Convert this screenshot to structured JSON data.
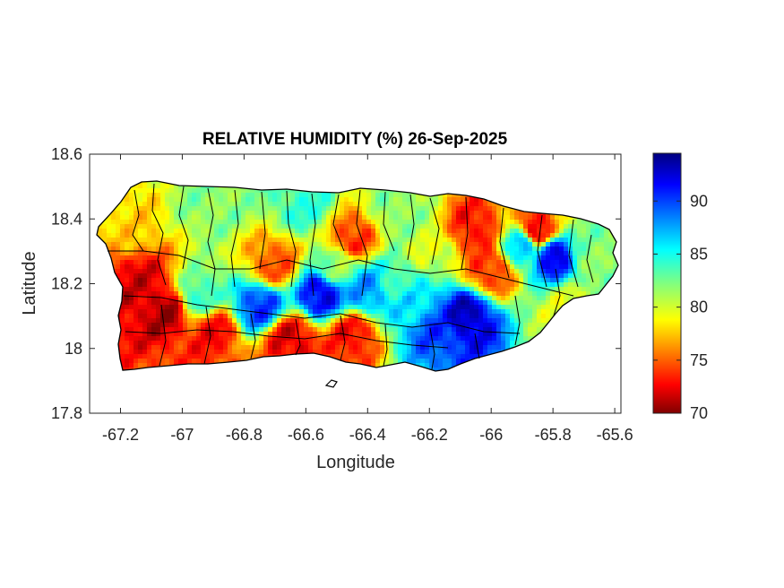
{
  "chart_data": {
    "type": "heatmap",
    "title": "RELATIVE HUMIDITY (%) 26-Sep-2025",
    "xlabel": "Longitude",
    "ylabel": "Latitude",
    "xlim": [
      -67.3,
      -65.58
    ],
    "ylim": [
      17.8,
      18.6
    ],
    "x_ticks": [
      -67.2,
      -67,
      -66.8,
      -66.6,
      -66.4,
      -66.2,
      -66,
      -65.8,
      -65.6
    ],
    "x_tick_labels": [
      "-67.2",
      "-67",
      "-66.8",
      "-66.6",
      "-66.4",
      "-66.2",
      "-66",
      "-65.8",
      "-65.6"
    ],
    "y_ticks": [
      17.8,
      18,
      18.2,
      18.4,
      18.6
    ],
    "y_tick_labels": [
      "17.8",
      "18",
      "18.2",
      "18.4",
      "18.6"
    ],
    "colorbar": {
      "colormap": "jet",
      "limits": [
        70,
        94.5
      ],
      "ticks": [
        70,
        75,
        80,
        85,
        90
      ],
      "tick_labels": [
        "70",
        "75",
        "80",
        "85",
        "90"
      ]
    },
    "field_features": [
      {
        "lon": -66.55,
        "lat": 18.17,
        "value": 92
      },
      {
        "lon": -66.75,
        "lat": 18.13,
        "value": 90
      },
      {
        "lon": -66.4,
        "lat": 18.18,
        "value": 88
      },
      {
        "lon": -66.08,
        "lat": 18.1,
        "value": 93
      },
      {
        "lon": -66.18,
        "lat": 18.07,
        "value": 90
      },
      {
        "lon": -65.8,
        "lat": 18.29,
        "value": 92
      },
      {
        "lon": -65.9,
        "lat": 18.32,
        "value": 86
      },
      {
        "lon": -66.25,
        "lat": 18.13,
        "value": 86
      },
      {
        "lon": -66.3,
        "lat": 18.2,
        "value": 84
      },
      {
        "lon": -66.95,
        "lat": 18.16,
        "value": 84
      },
      {
        "lon": -67.15,
        "lat": 18.2,
        "value": 72
      },
      {
        "lon": -67.05,
        "lat": 18.12,
        "value": 71
      },
      {
        "lon": -66.9,
        "lat": 18.05,
        "value": 73
      },
      {
        "lon": -66.65,
        "lat": 18.03,
        "value": 72
      },
      {
        "lon": -66.45,
        "lat": 18.04,
        "value": 73
      },
      {
        "lon": -66.05,
        "lat": 18.37,
        "value": 73
      },
      {
        "lon": -65.85,
        "lat": 18.36,
        "value": 72
      },
      {
        "lon": -66.45,
        "lat": 18.34,
        "value": 74
      },
      {
        "lon": -66.0,
        "lat": 18.24,
        "value": 74
      },
      {
        "lon": -66.7,
        "lat": 18.26,
        "value": 75
      },
      {
        "lon": -67.2,
        "lat": 18.38,
        "value": 78
      },
      {
        "lon": -66.9,
        "lat": 18.45,
        "value": 82
      },
      {
        "lon": -66.6,
        "lat": 18.44,
        "value": 84
      },
      {
        "lon": -66.3,
        "lat": 18.42,
        "value": 82
      },
      {
        "lon": -65.68,
        "lat": 18.3,
        "value": 82
      },
      {
        "lon": -66.2,
        "lat": 18.3,
        "value": 80
      },
      {
        "lon": -66.5,
        "lat": 18.25,
        "value": 82
      },
      {
        "lon": -65.75,
        "lat": 18.12,
        "value": 80
      }
    ]
  }
}
